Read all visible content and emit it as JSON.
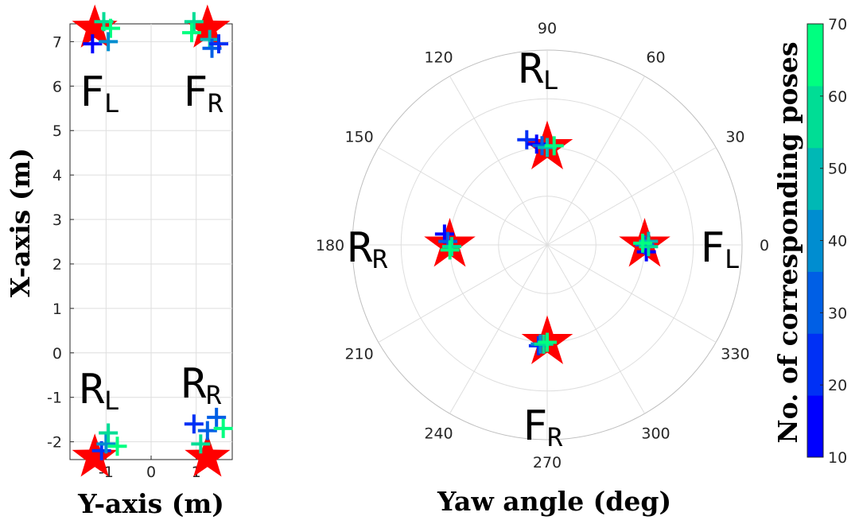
{
  "chart_data": [
    {
      "type": "scatter",
      "xlabel": "Y-axis (m)",
      "ylabel": "X-axis (m)",
      "xlim": [
        -1.8,
        1.8
      ],
      "ylim": [
        -2.4,
        7.4
      ],
      "x_ticks": [
        "-1",
        "0",
        "1"
      ],
      "y_ticks": [
        "-2",
        "-1",
        "0",
        "1",
        "2",
        "3",
        "4",
        "5",
        "6",
        "7"
      ],
      "grid": true,
      "region_labels": [
        {
          "main": "F",
          "sub": "L"
        },
        {
          "main": "F",
          "sub": "R"
        },
        {
          "main": "R",
          "sub": "L"
        },
        {
          "main": "R",
          "sub": "R"
        }
      ],
      "reference_points": [
        {
          "x": -1.25,
          "y": 7.3
        },
        {
          "x": 1.25,
          "y": 7.3
        },
        {
          "x": -1.25,
          "y": -2.35
        },
        {
          "x": 1.25,
          "y": -2.35
        }
      ],
      "estimated_points": [
        {
          "x": -1.3,
          "y": 6.95,
          "n": 10
        },
        {
          "x": -1.05,
          "y": 7.45,
          "n": 55
        },
        {
          "x": -0.9,
          "y": 7.3,
          "n": 65
        },
        {
          "x": -0.95,
          "y": 7.0,
          "n": 40
        },
        {
          "x": 0.95,
          "y": 7.45,
          "n": 60
        },
        {
          "x": 0.9,
          "y": 7.2,
          "n": 70
        },
        {
          "x": 1.3,
          "y": 7.05,
          "n": 45
        },
        {
          "x": 1.35,
          "y": 6.85,
          "n": 35
        },
        {
          "x": 1.5,
          "y": 6.95,
          "n": 20
        },
        {
          "x": -1.1,
          "y": -2.2,
          "n": 20
        },
        {
          "x": -1.0,
          "y": -2.05,
          "n": 40
        },
        {
          "x": -0.95,
          "y": -1.8,
          "n": 60
        },
        {
          "x": -0.75,
          "y": -2.1,
          "n": 65
        },
        {
          "x": 0.95,
          "y": -1.6,
          "n": 20
        },
        {
          "x": 1.1,
          "y": -2.05,
          "n": 55
        },
        {
          "x": 1.25,
          "y": -1.75,
          "n": 35
        },
        {
          "x": 1.45,
          "y": -1.45,
          "n": 30
        },
        {
          "x": 1.6,
          "y": -1.7,
          "n": 65
        }
      ]
    },
    {
      "type": "polar-scatter",
      "xlabel": "Yaw angle (deg)",
      "theta_ticks": [
        "0",
        "30",
        "60",
        "90",
        "120",
        "150",
        "180",
        "210",
        "240",
        "270",
        "300",
        "330"
      ],
      "region_labels": [
        {
          "main": "F",
          "sub": "L",
          "angle": 0
        },
        {
          "main": "R",
          "sub": "L",
          "angle": 90
        },
        {
          "main": "R",
          "sub": "R",
          "angle": 180
        },
        {
          "main": "F",
          "sub": "R",
          "angle": 270
        }
      ],
      "reference_points": [
        {
          "theta": 0,
          "r": 0.5
        },
        {
          "theta": 90,
          "r": 0.5
        },
        {
          "theta": 180,
          "r": 0.5
        },
        {
          "theta": 270,
          "r": 0.5
        }
      ],
      "estimated_points": [
        {
          "theta": 0,
          "r": 0.5,
          "n": 30
        },
        {
          "theta": 2,
          "r": 0.52,
          "n": 45
        },
        {
          "theta": -4,
          "r": 0.51,
          "n": 15
        },
        {
          "theta": -1,
          "r": 0.52,
          "n": 60
        },
        {
          "theta": 1,
          "r": 0.49,
          "n": 65
        },
        {
          "theta": 101,
          "r": 0.55,
          "n": 20
        },
        {
          "theta": 96,
          "r": 0.52,
          "n": 15
        },
        {
          "theta": 93,
          "r": 0.51,
          "n": 35
        },
        {
          "theta": 90,
          "r": 0.5,
          "n": 50
        },
        {
          "theta": 86,
          "r": 0.51,
          "n": 65
        },
        {
          "theta": 174,
          "r": 0.53,
          "n": 15
        },
        {
          "theta": 178,
          "r": 0.51,
          "n": 35
        },
        {
          "theta": 181,
          "r": 0.49,
          "n": 60
        },
        {
          "theta": 183,
          "r": 0.5,
          "n": 65
        },
        {
          "theta": 265,
          "r": 0.52,
          "n": 20
        },
        {
          "theta": 266,
          "r": 0.51,
          "n": 40
        },
        {
          "theta": 268,
          "r": 0.51,
          "n": 55
        },
        {
          "theta": 270,
          "r": 0.5,
          "n": 65
        }
      ]
    },
    {
      "type": "colorbar",
      "label": "No. of corresponding poses",
      "range": [
        10,
        70
      ],
      "ticks": [
        "10",
        "20",
        "30",
        "40",
        "50",
        "60",
        "70"
      ],
      "colors": [
        "#0000ff",
        "#0030f5",
        "#005fe5",
        "#008dd0",
        "#00b8b5",
        "#00dd95",
        "#00ff80"
      ]
    }
  ],
  "colors": {
    "reference": "#ff0000",
    "grid": "#dedede",
    "axis": "#262626"
  }
}
